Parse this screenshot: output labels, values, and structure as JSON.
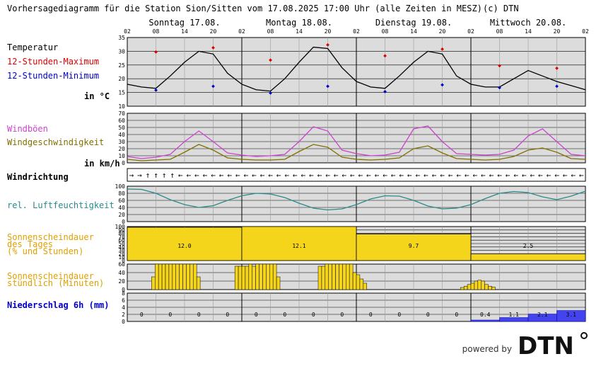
{
  "header": {
    "title": "Vorhersagediagramm für die Station Sion/Sitten vom 17.08.2025 17:00 Uhr (alle Zeiten in MESZ)",
    "copyright": "(c) DTN"
  },
  "days": [
    "Sonntag 17.08.",
    "Montag 18.08.",
    "Dienstag 19.08.",
    "Mittwoch 20.08."
  ],
  "hour_ticks": [
    "02",
    "08",
    "14",
    "20"
  ],
  "last_tick": "02",
  "labels": {
    "temp": "Temperatur",
    "tmax": "12-Stunden-Maximum",
    "tmin": "12-Stunden-Minimum",
    "temp_unit": "in °C",
    "gust": "Windböen",
    "wind": "Windgeschwindigkeit",
    "wind_unit": "in km/h",
    "winddir": "Windrichtung",
    "humid": "rel. Luftfeuchtigkeit",
    "sun_day_1": "Sonnenscheindauer",
    "sun_day_2": "des Tages",
    "sun_day_3": "(% und Stunden)",
    "sun_hour_1": "Sonnenscheindauer",
    "sun_hour_2": "stündlich (Minuten)",
    "precip": "Niederschlag 6h (mm)"
  },
  "colors": {
    "panel_bg": "#dcdcdc",
    "temp_line": "#000000",
    "tmax": "#dd0000",
    "tmin": "#0000cc",
    "gust": "#cc44cc",
    "wind": "#807000",
    "humid": "#2a8a8a",
    "sun": "#f5d41c",
    "precip": "#4444ee",
    "label_sun": "#e0a000"
  },
  "brand": {
    "powered": "powered by",
    "logo": "DTN"
  },
  "chart_data": [
    {
      "type": "line",
      "id": "temperature",
      "ylim": [
        10,
        35
      ],
      "yticks": [
        10,
        15,
        20,
        25,
        30,
        35
      ],
      "x_hours": [
        0,
        3,
        6,
        9,
        12,
        15,
        18,
        21,
        24,
        27,
        30,
        33,
        36,
        39,
        42,
        45,
        48,
        51,
        54,
        57,
        60,
        63,
        66,
        69,
        72,
        75,
        78,
        81,
        84,
        87,
        90,
        93,
        96
      ],
      "values": [
        18,
        17,
        16.5,
        21,
        26,
        30,
        29,
        22,
        18,
        16,
        15.5,
        20,
        26,
        31.5,
        31,
        24,
        19,
        17,
        16.5,
        21,
        26,
        30,
        29,
        21,
        18,
        17,
        17,
        20,
        23,
        21,
        19,
        17.5,
        16
      ],
      "tmax": [
        {
          "h": 6,
          "v": 30
        },
        {
          "h": 18,
          "v": 31.5
        },
        {
          "h": 30,
          "v": 27
        },
        {
          "h": 42,
          "v": 32.5
        },
        {
          "h": 54,
          "v": 28.5
        },
        {
          "h": 66,
          "v": 31
        },
        {
          "h": 78,
          "v": 25
        },
        {
          "h": 90,
          "v": 24
        }
      ],
      "tmin": [
        {
          "h": 6,
          "v": 16
        },
        {
          "h": 18,
          "v": 17.5
        },
        {
          "h": 30,
          "v": 15
        },
        {
          "h": 42,
          "v": 17.5
        },
        {
          "h": 54,
          "v": 15.5
        },
        {
          "h": 66,
          "v": 18
        },
        {
          "h": 78,
          "v": 17
        },
        {
          "h": 90,
          "v": 17.5
        }
      ]
    },
    {
      "type": "line",
      "id": "wind",
      "ylim": [
        0,
        70
      ],
      "yticks": [
        0,
        10,
        20,
        30,
        40,
        50,
        60,
        70
      ],
      "x_hours": [
        0,
        3,
        6,
        9,
        12,
        15,
        18,
        21,
        24,
        27,
        30,
        33,
        36,
        39,
        42,
        45,
        48,
        51,
        54,
        57,
        60,
        63,
        66,
        69,
        72,
        75,
        78,
        81,
        84,
        87,
        90,
        93,
        96
      ],
      "series": [
        {
          "name": "Windböen",
          "values": [
            9,
            6,
            8,
            12,
            30,
            45,
            30,
            14,
            11,
            9,
            10,
            12,
            30,
            51,
            45,
            18,
            13,
            10,
            11,
            15,
            48,
            52,
            30,
            13,
            12,
            11,
            12,
            18,
            38,
            48,
            30,
            12,
            10
          ]
        },
        {
          "name": "Windgeschwindigkeit",
          "values": [
            5,
            3,
            4,
            5,
            15,
            26,
            18,
            7,
            5,
            4,
            4,
            5,
            16,
            26,
            22,
            8,
            5,
            4,
            5,
            7,
            20,
            24,
            14,
            6,
            5,
            4,
            5,
            9,
            18,
            21,
            15,
            6,
            5
          ]
        }
      ]
    },
    {
      "type": "arrows",
      "id": "wind_direction",
      "directions": [
        "E",
        "E",
        "N",
        "N",
        "N",
        "N",
        "W",
        "W",
        "W",
        "W",
        "W",
        "W",
        "W",
        "W",
        "W",
        "W",
        "W",
        "W",
        "W",
        "W",
        "W",
        "W",
        "W",
        "W",
        "W",
        "W",
        "W",
        "W",
        "W",
        "W",
        "W",
        "W",
        "W",
        "W",
        "W",
        "W",
        "W",
        "W",
        "W",
        "W",
        "W",
        "W",
        "W",
        "W",
        "W",
        "W",
        "W",
        "W",
        "W",
        "W",
        "W",
        "W",
        "W",
        "W",
        "W",
        "W"
      ]
    },
    {
      "type": "line",
      "id": "humidity",
      "ylim": [
        0,
        100
      ],
      "yticks": [
        0,
        20,
        40,
        60,
        80,
        100
      ],
      "x_hours": [
        0,
        3,
        6,
        9,
        12,
        15,
        18,
        21,
        24,
        27,
        30,
        33,
        36,
        39,
        42,
        45,
        48,
        51,
        54,
        57,
        60,
        63,
        66,
        69,
        72,
        75,
        78,
        81,
        84,
        87,
        90,
        93,
        96
      ],
      "values": [
        92,
        91,
        80,
        62,
        48,
        40,
        45,
        60,
        73,
        80,
        78,
        68,
        52,
        38,
        33,
        36,
        48,
        64,
        73,
        72,
        60,
        44,
        36,
        38,
        48,
        65,
        80,
        85,
        82,
        70,
        62,
        72,
        86
      ]
    },
    {
      "type": "bar",
      "id": "daily_sunshine",
      "categories": [
        "Sonntag 17.08.",
        "Montag 18.08.",
        "Dienstag 19.08.",
        "Mittwoch 20.08."
      ],
      "percent": [
        98,
        100,
        78,
        20
      ],
      "hours": [
        "12.0",
        "12.1",
        "9.7",
        "2.5"
      ],
      "ylim": [
        0,
        100
      ],
      "yticks": [
        0,
        10,
        20,
        30,
        40,
        50,
        60,
        70,
        80,
        90,
        100
      ]
    },
    {
      "type": "bar",
      "id": "hourly_sunshine",
      "ylim": [
        0,
        60
      ],
      "yticks": [
        0,
        20,
        40,
        60
      ],
      "values": [
        0,
        0,
        0,
        0,
        0,
        0,
        0,
        30,
        60,
        60,
        60,
        60,
        60,
        60,
        60,
        60,
        60,
        60,
        60,
        60,
        30,
        0,
        0,
        0,
        0,
        0,
        0,
        0,
        0,
        0,
        0,
        55,
        55,
        55,
        55,
        60,
        55,
        60,
        60,
        60,
        60,
        60,
        60,
        30,
        0,
        0,
        0,
        0,
        0,
        0,
        0,
        0,
        0,
        0,
        0,
        55,
        55,
        60,
        60,
        60,
        60,
        60,
        60,
        60,
        60,
        40,
        35,
        25,
        15,
        0,
        0,
        0,
        0,
        0,
        0,
        0,
        0,
        0,
        0,
        0,
        0,
        0,
        0,
        0,
        0,
        0,
        0,
        0,
        0,
        0,
        0,
        0,
        0,
        0,
        0,
        0,
        5,
        8,
        12,
        15,
        20,
        22,
        20,
        12,
        8,
        6,
        0,
        0,
        0,
        0,
        0,
        0,
        0,
        0,
        0,
        0,
        0,
        0,
        0,
        0,
        0,
        0,
        0,
        0,
        0,
        0,
        0,
        0,
        0,
        0,
        0,
        0
      ]
    },
    {
      "type": "bar",
      "id": "precipitation",
      "ylim": [
        0,
        8
      ],
      "yticks": [
        0,
        2,
        4,
        6,
        8
      ],
      "labels": [
        "0",
        "0",
        "0",
        "0",
        "0",
        "0",
        "0",
        "0",
        "0",
        "0",
        "0",
        "0",
        "0.4",
        "1.1",
        "2.1",
        "3.1"
      ],
      "values": [
        0,
        0,
        0,
        0,
        0,
        0,
        0,
        0,
        0,
        0,
        0,
        0,
        0.4,
        1.1,
        2.1,
        3.1
      ]
    }
  ]
}
